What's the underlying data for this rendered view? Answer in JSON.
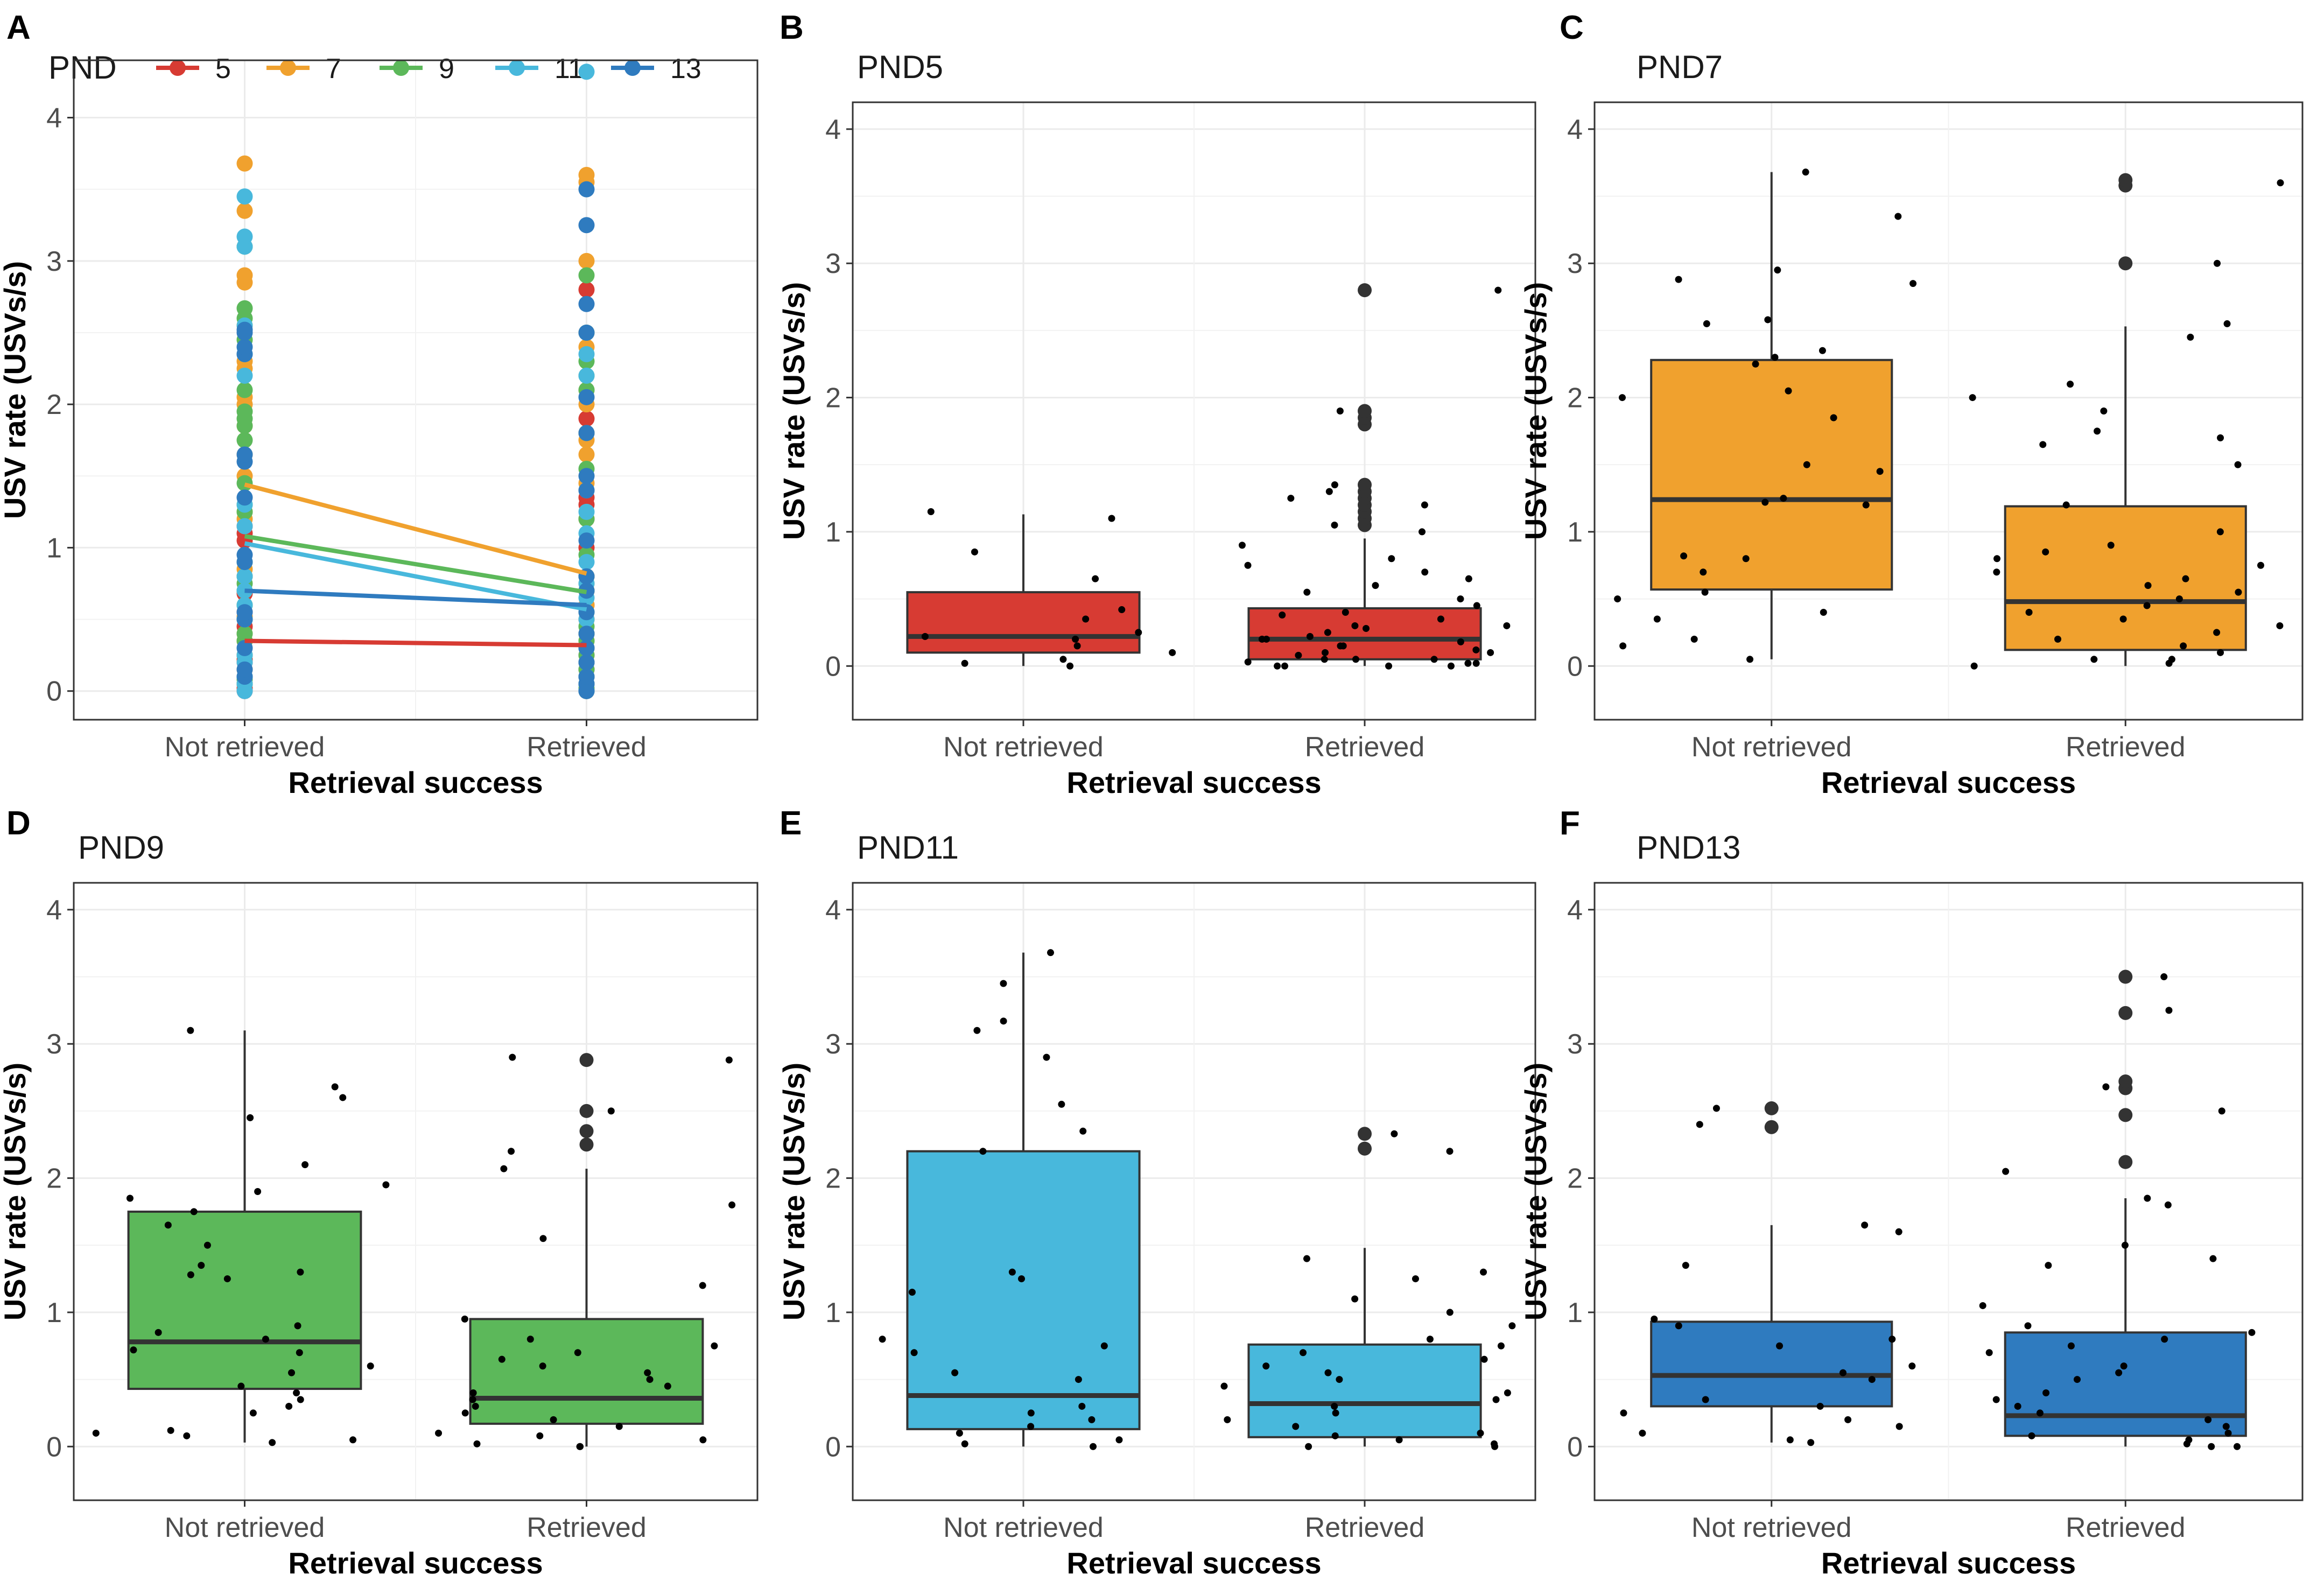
{
  "figure": {
    "y_axis_label": "USV rate (USVs/s)",
    "x_axis_label": "Retrieval success"
  },
  "colors": {
    "pnd5": "#d73b33",
    "pnd7": "#f0a12e",
    "pnd9": "#5cb85a",
    "pnd11": "#48b8dc",
    "pnd13": "#2f7bbf",
    "grid": "#ebebeb",
    "border": "#333333"
  },
  "chart_data": [
    {
      "type": "line",
      "panel": "A",
      "title": "",
      "legend_title": "PND",
      "legend_position": "top",
      "categories": [
        "Not retrieved",
        "Retrieved"
      ],
      "xlabel": "Retrieval success",
      "ylabel": "USV rate (USVs/s)",
      "ylim": [
        -0.2,
        4.4
      ],
      "yticks": [
        0,
        1,
        2,
        3,
        4
      ],
      "series": [
        {
          "name": "5",
          "color": "#d73b33",
          "values": [
            0.35,
            0.32
          ],
          "points_not_retrieved": [
            0.0,
            0.02,
            0.05,
            0.2,
            0.22,
            0.25,
            0.35,
            0.45,
            0.55,
            0.68,
            1.05,
            1.1,
            1.15
          ],
          "points_retrieved": [
            0.0,
            0.05,
            0.1,
            0.15,
            0.2,
            0.25,
            0.3,
            0.4,
            0.5,
            0.6,
            0.7,
            0.8,
            1.0,
            1.2,
            1.3,
            1.35,
            1.8,
            1.9,
            2.8
          ]
        },
        {
          "name": "7",
          "color": "#f0a12e",
          "values": [
            1.44,
            0.82
          ],
          "points_not_retrieved": [
            0.05,
            0.15,
            0.35,
            0.4,
            0.52,
            0.6,
            0.7,
            0.8,
            0.85,
            1.2,
            1.25,
            1.5,
            1.65,
            1.85,
            2.0,
            2.05,
            2.25,
            2.3,
            2.55,
            2.85,
            2.9,
            3.35,
            3.68
          ],
          "points_retrieved": [
            0.0,
            0.05,
            0.1,
            0.2,
            0.35,
            0.4,
            0.5,
            0.6,
            0.7,
            0.75,
            0.8,
            1.2,
            1.45,
            1.65,
            1.75,
            2.0,
            2.1,
            2.4,
            2.5,
            3.0,
            3.55,
            3.6
          ]
        },
        {
          "name": "9",
          "color": "#5cb85a",
          "values": [
            1.08,
            0.69
          ],
          "points_not_retrieved": [
            0.05,
            0.08,
            0.1,
            0.25,
            0.35,
            0.4,
            0.5,
            0.6,
            0.7,
            0.75,
            0.8,
            0.9,
            1.25,
            1.3,
            1.45,
            1.75,
            1.85,
            1.9,
            1.95,
            2.1,
            2.45,
            2.6,
            2.67,
            3.1
          ],
          "points_retrieved": [
            0.0,
            0.02,
            0.05,
            0.1,
            0.15,
            0.25,
            0.35,
            0.4,
            0.45,
            0.55,
            0.7,
            0.8,
            0.95,
            1.2,
            1.55,
            1.8,
            2.1,
            2.2,
            2.3,
            2.5,
            2.9
          ]
        },
        {
          "name": "11",
          "color": "#48b8dc",
          "values": [
            1.03,
            0.57
          ],
          "points_not_retrieved": [
            0.0,
            0.05,
            0.1,
            0.2,
            0.25,
            0.5,
            0.6,
            0.7,
            0.8,
            1.15,
            1.3,
            2.2,
            2.35,
            2.55,
            3.1,
            3.17,
            3.45
          ],
          "points_retrieved": [
            0.0,
            0.05,
            0.1,
            0.2,
            0.3,
            0.5,
            0.65,
            0.75,
            0.9,
            1.1,
            1.25,
            1.4,
            2.2,
            2.35,
            4.32
          ]
        },
        {
          "name": "13",
          "color": "#2f7bbf",
          "values": [
            0.7,
            0.6
          ],
          "points_not_retrieved": [
            0.1,
            0.15,
            0.3,
            0.5,
            0.55,
            0.9,
            0.95,
            1.35,
            1.6,
            1.65,
            2.35,
            2.4,
            2.5,
            2.52
          ],
          "points_retrieved": [
            0.0,
            0.05,
            0.1,
            0.2,
            0.3,
            0.4,
            0.55,
            0.7,
            0.8,
            1.05,
            1.4,
            1.5,
            1.8,
            2.05,
            2.5,
            2.7,
            3.25,
            3.5
          ]
        }
      ]
    },
    {
      "type": "box",
      "panel": "B",
      "title": "PND5",
      "color": "#d73b33",
      "categories": [
        "Not retrieved",
        "Retrieved"
      ],
      "xlabel": "Retrieval success",
      "ylabel": "USV rate (USVs/s)",
      "ylim": [
        -0.4,
        4.2
      ],
      "yticks": [
        0,
        1,
        2,
        3,
        4
      ],
      "boxes": [
        {
          "q1": 0.1,
          "median": 0.22,
          "q3": 0.55,
          "whisker_low": 0.0,
          "whisker_high": 1.13,
          "outliers": [],
          "points": [
            0.0,
            0.02,
            0.05,
            0.1,
            0.15,
            0.2,
            0.22,
            0.25,
            0.35,
            0.42,
            0.65,
            0.85,
            1.1,
            1.15
          ]
        },
        {
          "q1": 0.05,
          "median": 0.2,
          "q3": 0.43,
          "whisker_low": 0.0,
          "whisker_high": 0.95,
          "outliers": [
            1.05,
            1.1,
            1.15,
            1.2,
            1.25,
            1.3,
            1.35,
            1.8,
            1.85,
            1.9,
            2.8
          ],
          "points": [
            0.0,
            0.0,
            0.0,
            0.0,
            0.02,
            0.02,
            0.03,
            0.05,
            0.05,
            0.05,
            0.08,
            0.1,
            0.1,
            0.12,
            0.15,
            0.15,
            0.18,
            0.2,
            0.2,
            0.22,
            0.25,
            0.28,
            0.3,
            0.3,
            0.35,
            0.38,
            0.4,
            0.45,
            0.5,
            0.55,
            0.6,
            0.65,
            0.7,
            0.75,
            0.8,
            0.9,
            1.0,
            1.05,
            1.2,
            1.25,
            1.3,
            1.35,
            1.9,
            2.8
          ]
        }
      ]
    },
    {
      "type": "box",
      "panel": "C",
      "title": "PND7",
      "color": "#f0a12e",
      "categories": [
        "Not retrieved",
        "Retrieved"
      ],
      "xlabel": "Retrieval success",
      "ylabel": "USV rate (USVs/s)",
      "ylim": [
        -0.4,
        4.2
      ],
      "yticks": [
        0,
        1,
        2,
        3,
        4
      ],
      "boxes": [
        {
          "q1": 0.57,
          "median": 1.24,
          "q3": 2.28,
          "whisker_low": 0.05,
          "whisker_high": 3.68,
          "outliers": [],
          "points": [
            0.05,
            0.15,
            0.2,
            0.35,
            0.4,
            0.5,
            0.55,
            0.7,
            0.8,
            0.82,
            1.2,
            1.22,
            1.25,
            1.45,
            1.5,
            1.85,
            2.0,
            2.05,
            2.25,
            2.3,
            2.35,
            2.55,
            2.58,
            2.85,
            2.88,
            2.95,
            3.35,
            3.68
          ]
        },
        {
          "q1": 0.12,
          "median": 0.48,
          "q3": 1.19,
          "whisker_low": 0.0,
          "whisker_high": 2.53,
          "outliers": [
            3.0,
            3.58,
            3.62
          ],
          "points": [
            0.0,
            0.02,
            0.05,
            0.05,
            0.1,
            0.15,
            0.2,
            0.25,
            0.3,
            0.35,
            0.4,
            0.45,
            0.5,
            0.55,
            0.6,
            0.65,
            0.7,
            0.75,
            0.8,
            0.85,
            0.9,
            1.0,
            1.2,
            1.5,
            1.65,
            1.7,
            1.75,
            1.9,
            2.0,
            2.1,
            2.45,
            2.55,
            3.0,
            3.6
          ]
        }
      ]
    },
    {
      "type": "box",
      "panel": "D",
      "title": "PND9",
      "color": "#5cb85a",
      "categories": [
        "Not retrieved",
        "Retrieved"
      ],
      "xlabel": "Retrieval success",
      "ylabel": "USV rate (USVs/s)",
      "ylim": [
        -0.4,
        4.2
      ],
      "yticks": [
        0,
        1,
        2,
        3,
        4
      ],
      "boxes": [
        {
          "q1": 0.43,
          "median": 0.78,
          "q3": 1.75,
          "whisker_low": 0.03,
          "whisker_high": 3.1,
          "outliers": [],
          "points": [
            0.03,
            0.05,
            0.08,
            0.1,
            0.12,
            0.25,
            0.3,
            0.35,
            0.4,
            0.45,
            0.55,
            0.6,
            0.7,
            0.72,
            0.8,
            0.85,
            0.9,
            1.25,
            1.28,
            1.3,
            1.35,
            1.5,
            1.65,
            1.75,
            1.85,
            1.9,
            1.95,
            2.1,
            2.45,
            2.6,
            2.68,
            3.1
          ]
        },
        {
          "q1": 0.17,
          "median": 0.36,
          "q3": 0.95,
          "whisker_low": 0.0,
          "whisker_high": 2.07,
          "outliers": [
            2.25,
            2.35,
            2.5,
            2.88
          ],
          "points": [
            0.0,
            0.0,
            0.02,
            0.05,
            0.08,
            0.1,
            0.15,
            0.2,
            0.25,
            0.3,
            0.35,
            0.4,
            0.45,
            0.5,
            0.55,
            0.6,
            0.65,
            0.7,
            0.75,
            0.8,
            0.95,
            1.2,
            1.55,
            1.8,
            2.07,
            2.2,
            2.5,
            2.88,
            2.9
          ]
        }
      ]
    },
    {
      "type": "box",
      "panel": "E",
      "title": "PND11",
      "color": "#48b8dc",
      "categories": [
        "Not retrieved",
        "Retrieved"
      ],
      "xlabel": "Retrieval success",
      "ylabel": "USV rate (USVs/s)",
      "ylim": [
        -0.4,
        4.2
      ],
      "yticks": [
        0,
        1,
        2,
        3,
        4
      ],
      "boxes": [
        {
          "q1": 0.13,
          "median": 0.38,
          "q3": 2.2,
          "whisker_low": 0.0,
          "whisker_high": 3.68,
          "outliers": [],
          "points": [
            0.0,
            0.02,
            0.05,
            0.1,
            0.15,
            0.2,
            0.25,
            0.3,
            0.5,
            0.55,
            0.7,
            0.75,
            0.8,
            1.15,
            1.25,
            1.3,
            2.2,
            2.35,
            2.55,
            2.9,
            3.1,
            3.17,
            3.45,
            3.68
          ]
        },
        {
          "q1": 0.07,
          "median": 0.32,
          "q3": 0.76,
          "whisker_low": 0.0,
          "whisker_high": 1.48,
          "outliers": [
            2.22,
            2.33
          ],
          "points": [
            0.0,
            0.0,
            0.02,
            0.05,
            0.08,
            0.1,
            0.15,
            0.2,
            0.25,
            0.3,
            0.35,
            0.4,
            0.45,
            0.5,
            0.55,
            0.6,
            0.65,
            0.7,
            0.75,
            0.8,
            0.9,
            1.0,
            1.1,
            1.25,
            1.3,
            1.4,
            2.2,
            2.33
          ]
        }
      ]
    },
    {
      "type": "box",
      "panel": "F",
      "title": "PND13",
      "color": "#2f7bbf",
      "categories": [
        "Not retrieved",
        "Retrieved"
      ],
      "xlabel": "Retrieval success",
      "ylabel": "USV rate (USVs/s)",
      "ylim": [
        -0.4,
        4.2
      ],
      "yticks": [
        0,
        1,
        2,
        3,
        4
      ],
      "boxes": [
        {
          "q1": 0.3,
          "median": 0.53,
          "q3": 0.93,
          "whisker_low": 0.03,
          "whisker_high": 1.65,
          "outliers": [
            2.38,
            2.52
          ],
          "points": [
            0.03,
            0.05,
            0.1,
            0.15,
            0.2,
            0.25,
            0.3,
            0.35,
            0.5,
            0.55,
            0.6,
            0.75,
            0.8,
            0.9,
            0.95,
            1.35,
            1.6,
            1.65,
            2.4,
            2.52
          ]
        },
        {
          "q1": 0.08,
          "median": 0.23,
          "q3": 0.85,
          "whisker_low": 0.0,
          "whisker_high": 1.85,
          "outliers": [
            2.12,
            2.47,
            2.67,
            2.72,
            3.23,
            3.5
          ],
          "points": [
            0.0,
            0.0,
            0.02,
            0.05,
            0.08,
            0.1,
            0.15,
            0.2,
            0.25,
            0.3,
            0.35,
            0.4,
            0.5,
            0.55,
            0.6,
            0.7,
            0.75,
            0.8,
            0.85,
            0.9,
            1.05,
            1.35,
            1.4,
            1.5,
            1.8,
            1.85,
            2.05,
            2.5,
            2.68,
            3.25,
            3.5
          ]
        }
      ]
    }
  ]
}
